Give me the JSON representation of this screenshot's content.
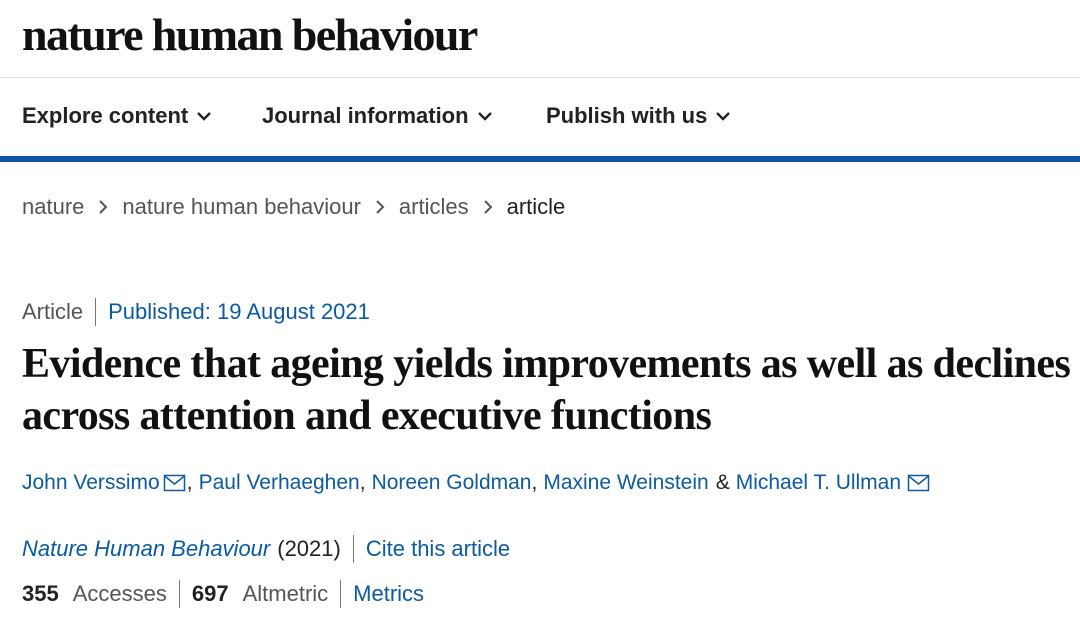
{
  "header": {
    "logo": "nature human behaviour"
  },
  "nav": [
    "Explore content",
    "Journal information",
    "Publish with us"
  ],
  "breadcrumbs": [
    "nature",
    "nature human behaviour",
    "articles",
    "article"
  ],
  "article": {
    "type": "Article",
    "published": "Published: 19 August 2021",
    "title": "Evidence that ageing yields improvements as well as declines across attention and executive functions",
    "authors": [
      "John Verssimo",
      "Paul Verhaeghen",
      "Noreen Goldman",
      "Maxine Weinstein",
      "Michael T. Ullman"
    ],
    "separators": [
      ",",
      ",",
      ",",
      "&"
    ],
    "journal": "Nature Human Behaviour",
    "year": "(2021)",
    "cite": "Cite this article",
    "metrics": {
      "accesses": 355,
      "accesses_label": "Accesses",
      "altmetric": 697,
      "altmetric_label": "Altmetric",
      "link": "Metrics"
    }
  }
}
